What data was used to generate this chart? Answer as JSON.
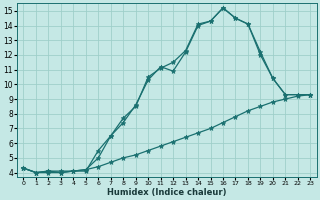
{
  "xlabel": "Humidex (Indice chaleur)",
  "bg_color": "#c5e8e5",
  "grid_color": "#9fcfca",
  "line_color": "#1a7070",
  "xlim": [
    -0.5,
    23.5
  ],
  "ylim": [
    3.7,
    15.5
  ],
  "xticks": [
    0,
    1,
    2,
    3,
    4,
    5,
    6,
    7,
    8,
    9,
    10,
    11,
    12,
    13,
    14,
    15,
    16,
    17,
    18,
    19,
    20,
    21,
    22,
    23
  ],
  "yticks": [
    4,
    5,
    6,
    7,
    8,
    9,
    10,
    11,
    12,
    13,
    14,
    15
  ],
  "line1_x": [
    0,
    1,
    2,
    3,
    4,
    5,
    6,
    7,
    8,
    9,
    10,
    11,
    12,
    13,
    14,
    15,
    16,
    17,
    18,
    19,
    20,
    21,
    22,
    23
  ],
  "line1_y": [
    4.3,
    4.0,
    4.0,
    4.0,
    4.1,
    4.1,
    5.5,
    6.5,
    7.7,
    8.5,
    10.5,
    11.1,
    11.5,
    12.3,
    14.1,
    14.3,
    15.2,
    14.5,
    14.1,
    12.2,
    10.4,
    9.3,
    9.3,
    9.3
  ],
  "line2_x": [
    0,
    1,
    2,
    3,
    4,
    5,
    6,
    7,
    8,
    9,
    10,
    11,
    12,
    13,
    14,
    15,
    16,
    17,
    18,
    19,
    20,
    21,
    22,
    23
  ],
  "line2_y": [
    4.3,
    4.0,
    4.1,
    4.0,
    4.1,
    4.2,
    5.0,
    6.5,
    7.4,
    8.6,
    10.3,
    11.2,
    10.9,
    12.2,
    14.0,
    14.3,
    15.2,
    14.5,
    14.1,
    12.0,
    10.4,
    9.3,
    9.3,
    9.3
  ],
  "line3_x": [
    0,
    1,
    2,
    3,
    4,
    5,
    6,
    7,
    8,
    9,
    10,
    11,
    12,
    13,
    14,
    15,
    16,
    17,
    18,
    19,
    20,
    21,
    22,
    23
  ],
  "line3_y": [
    4.3,
    4.0,
    4.1,
    4.1,
    4.1,
    4.2,
    4.4,
    4.7,
    5.0,
    5.2,
    5.5,
    5.8,
    6.1,
    6.4,
    6.7,
    7.0,
    7.4,
    7.8,
    8.2,
    8.5,
    8.8,
    9.0,
    9.2,
    9.3
  ],
  "marker": "*",
  "markersize": 3.5,
  "linewidth": 0.9,
  "xlabel_fontsize": 6.0,
  "tick_fontsize_x": 4.5,
  "tick_fontsize_y": 5.5
}
